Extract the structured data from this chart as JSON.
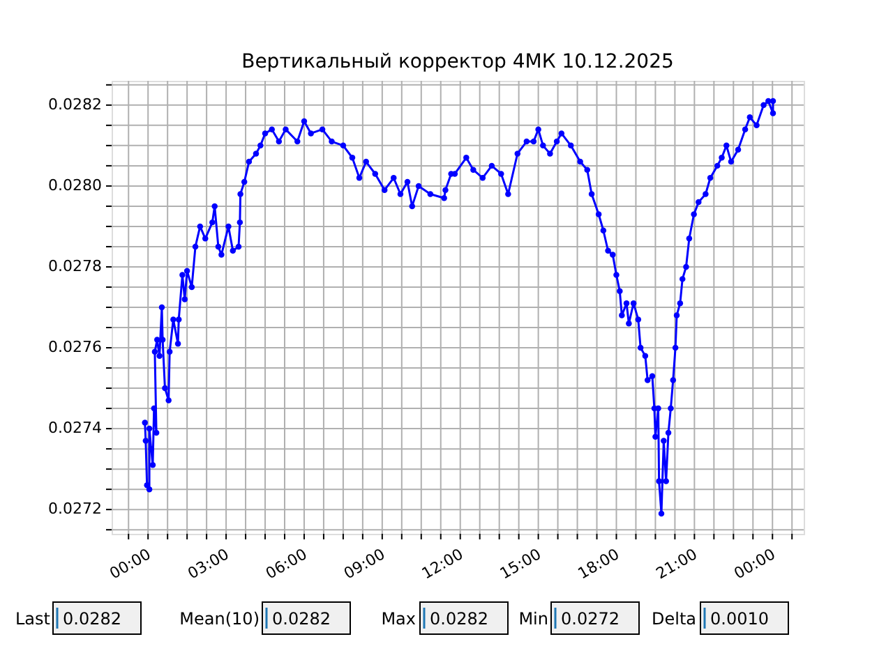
{
  "chart_data": {
    "type": "line",
    "title": "Вертикальный корректор 4МК 10.12.2025",
    "x": [
      -0.12,
      -0.09,
      -0.04,
      0.05,
      0.05,
      0.12,
      0.18,
      0.23,
      0.32,
      0.26,
      0.35,
      0.44,
      0.53,
      0.56,
      0.65,
      0.79,
      0.83,
      0.97,
      1.15,
      1.18,
      1.32,
      1.41,
      1.5,
      1.68,
      1.82,
      2.0,
      2.2,
      2.47,
      2.56,
      2.7,
      2.82,
      3.09,
      3.26,
      3.48,
      3.53,
      3.55,
      3.7,
      3.88,
      4.15,
      4.32,
      4.5,
      4.76,
      5.03,
      5.29,
      5.74,
      6.0,
      6.26,
      6.7,
      7.06,
      7.5,
      7.85,
      8.12,
      8.38,
      8.73,
      9.09,
      9.44,
      9.7,
      9.97,
      10.15,
      10.4,
      10.85,
      11.38,
      11.43,
      11.65,
      11.79,
      12.23,
      12.5,
      12.86,
      13.21,
      13.57,
      13.84,
      14.2,
      14.55,
      14.82,
      15.0,
      15.18,
      15.45,
      15.71,
      15.89,
      16.25,
      16.61,
      16.88,
      17.05,
      17.32,
      17.5,
      17.68,
      17.86,
      18.0,
      18.13,
      18.21,
      18.39,
      18.48,
      18.66,
      18.84,
      18.93,
      19.11,
      19.2,
      19.38,
      19.46,
      19.5,
      19.61,
      19.64,
      19.73,
      19.82,
      19.91,
      20.0,
      20.09,
      20.18,
      20.27,
      20.32,
      20.45,
      20.54,
      20.68,
      20.8,
      20.98,
      21.16,
      21.43,
      21.61,
      21.88,
      22.05,
      22.23,
      22.41,
      22.68,
      22.95,
      23.13,
      23.39,
      23.66,
      23.84,
      24.02,
      24.02
    ],
    "series": [
      {
        "color": "#0000ff",
        "values": [
          0.027415,
          0.02737,
          0.02726,
          0.02725,
          0.0274,
          0.02735,
          0.02731,
          0.02745,
          0.02739,
          0.02759,
          0.02762,
          0.02758,
          0.0277,
          0.02762,
          0.0275,
          0.02747,
          0.02759,
          0.02767,
          0.02761,
          0.02767,
          0.02778,
          0.02772,
          0.02779,
          0.02775,
          0.02785,
          0.0279,
          0.02787,
          0.02791,
          0.02795,
          0.02785,
          0.02783,
          0.0279,
          0.02784,
          0.02785,
          0.02791,
          0.02798,
          0.02801,
          0.02806,
          0.02808,
          0.0281,
          0.02813,
          0.02814,
          0.02811,
          0.02814,
          0.02811,
          0.02816,
          0.02813,
          0.02814,
          0.02811,
          0.0281,
          0.02807,
          0.02802,
          0.02806,
          0.02803,
          0.02799,
          0.02802,
          0.02798,
          0.02801,
          0.02795,
          0.028,
          0.02798,
          0.02797,
          0.02799,
          0.02803,
          0.02803,
          0.02807,
          0.02804,
          0.02802,
          0.02805,
          0.02803,
          0.02798,
          0.02808,
          0.02811,
          0.02811,
          0.02814,
          0.0281,
          0.02808,
          0.02811,
          0.02813,
          0.0281,
          0.02806,
          0.02804,
          0.02798,
          0.02793,
          0.02789,
          0.02784,
          0.02783,
          0.02778,
          0.02774,
          0.02768,
          0.02771,
          0.02766,
          0.02771,
          0.02767,
          0.0276,
          0.02758,
          0.02752,
          0.02753,
          0.02745,
          0.02738,
          0.02745,
          0.02727,
          0.02719,
          0.02737,
          0.02727,
          0.02739,
          0.02745,
          0.02752,
          0.0276,
          0.02768,
          0.02771,
          0.02777,
          0.0278,
          0.02787,
          0.02793,
          0.02796,
          0.02798,
          0.02802,
          0.02805,
          0.02807,
          0.0281,
          0.02806,
          0.02809,
          0.02814,
          0.02817,
          0.02815,
          0.0282,
          0.02821,
          0.02818,
          0.02821
        ]
      }
    ],
    "xlim": [
      -1.4,
      25.2
    ],
    "xticks": [
      {
        "value": -0.75,
        "label": null
      },
      {
        "value": 0,
        "label": "00:00"
      },
      {
        "value": 0.75,
        "label": null
      },
      {
        "value": 1.5,
        "label": null
      },
      {
        "value": 2.25,
        "label": null
      },
      {
        "value": 3,
        "label": "03:00"
      },
      {
        "value": 3.75,
        "label": null
      },
      {
        "value": 4.5,
        "label": null
      },
      {
        "value": 5.25,
        "label": null
      },
      {
        "value": 6,
        "label": "06:00"
      },
      {
        "value": 6.75,
        "label": null
      },
      {
        "value": 7.5,
        "label": null
      },
      {
        "value": 8.25,
        "label": null
      },
      {
        "value": 9,
        "label": "09:00"
      },
      {
        "value": 9.75,
        "label": null
      },
      {
        "value": 10.5,
        "label": null
      },
      {
        "value": 11.25,
        "label": null
      },
      {
        "value": 12,
        "label": "12:00"
      },
      {
        "value": 12.75,
        "label": null
      },
      {
        "value": 13.5,
        "label": null
      },
      {
        "value": 14.25,
        "label": null
      },
      {
        "value": 15,
        "label": "15:00"
      },
      {
        "value": 15.75,
        "label": null
      },
      {
        "value": 16.5,
        "label": null
      },
      {
        "value": 17.25,
        "label": null
      },
      {
        "value": 18,
        "label": "18:00"
      },
      {
        "value": 18.75,
        "label": null
      },
      {
        "value": 19.5,
        "label": null
      },
      {
        "value": 20.25,
        "label": null
      },
      {
        "value": 21,
        "label": "21:00"
      },
      {
        "value": 21.75,
        "label": null
      },
      {
        "value": 22.5,
        "label": null
      },
      {
        "value": 23.25,
        "label": null
      },
      {
        "value": 24,
        "label": "00:00"
      },
      {
        "value": 24.75,
        "label": null
      }
    ],
    "ylim": [
      0.02714,
      0.02826
    ],
    "yticks": [
      {
        "value": 0.02715,
        "label": null
      },
      0.0272,
      {
        "value": 0.02725,
        "label": null
      },
      {
        "value": 0.0273,
        "label": null
      },
      {
        "value": 0.02735,
        "label": null
      },
      0.0274,
      {
        "value": 0.02745,
        "label": null
      },
      {
        "value": 0.0275,
        "label": null
      },
      {
        "value": 0.02755,
        "label": null
      },
      0.0276,
      {
        "value": 0.02765,
        "label": null
      },
      {
        "value": 0.0277,
        "label": null
      },
      {
        "value": 0.02775,
        "label": null
      },
      0.0278,
      {
        "value": 0.02785,
        "label": null
      },
      {
        "value": 0.0279,
        "label": null
      },
      {
        "value": 0.02795,
        "label": null
      },
      {
        "value": 0.028,
        "label": "0.0280"
      },
      {
        "value": 0.02805,
        "label": null
      },
      {
        "value": 0.0281,
        "label": null
      },
      {
        "value": 0.02815,
        "label": null
      },
      0.0282,
      {
        "value": 0.02825,
        "label": null
      }
    ],
    "grid": true,
    "marker": "circle",
    "line_style": "solid",
    "annotations": [
      "Last",
      "0.0282",
      "Mean(10)",
      "0.0282",
      "Max",
      "0.0282",
      "Min",
      "0.0272",
      "Delta",
      "0.0010"
    ]
  }
}
